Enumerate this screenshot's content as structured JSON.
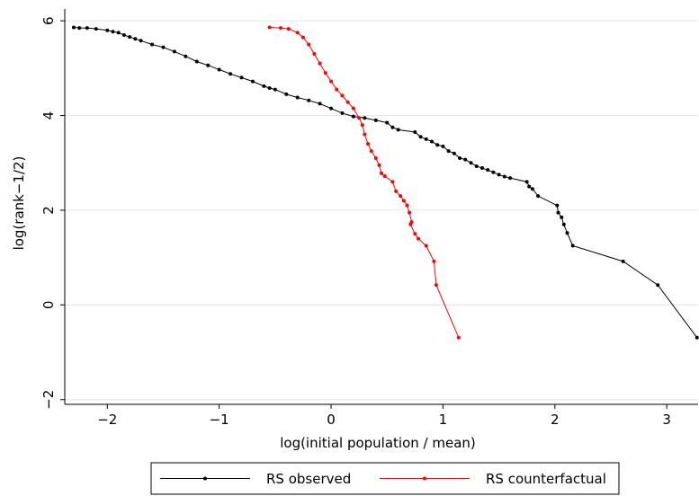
{
  "chart_data": {
    "type": "scatter",
    "title": "",
    "xlabel": "log(initial population / mean)",
    "ylabel": "log(rank−1/2)",
    "xlim": [
      -2.38,
      3.28
    ],
    "ylim": [
      -2.1,
      6.25
    ],
    "xticks": [
      -2,
      -1,
      0,
      1,
      2,
      3
    ],
    "xtick_labels": [
      "−2",
      "−1",
      "0",
      "1",
      "2",
      "3"
    ],
    "yticks": [
      -2,
      0,
      2,
      4,
      6
    ],
    "ytick_labels": [
      "−2",
      "0",
      "2",
      "4",
      "6"
    ],
    "grid": "horizontal",
    "legend_position": "bottom",
    "series": [
      {
        "name": "RS observed",
        "color": "#000000",
        "x": [
          -2.3,
          -2.25,
          -2.18,
          -2.1,
          -2.0,
          -1.95,
          -1.9,
          -1.85,
          -1.8,
          -1.75,
          -1.7,
          -1.6,
          -1.5,
          -1.4,
          -1.3,
          -1.2,
          -1.1,
          -1.0,
          -0.9,
          -0.8,
          -0.7,
          -0.6,
          -0.55,
          -0.5,
          -0.4,
          -0.3,
          -0.2,
          -0.1,
          0.0,
          0.1,
          0.2,
          0.3,
          0.4,
          0.5,
          0.55,
          0.6,
          0.75,
          0.8,
          0.85,
          0.9,
          0.95,
          1.0,
          1.05,
          1.1,
          1.15,
          1.2,
          1.25,
          1.3,
          1.35,
          1.4,
          1.45,
          1.5,
          1.55,
          1.6,
          1.75,
          1.77,
          1.8,
          1.85,
          2.02,
          2.03,
          2.06,
          2.08,
          2.11,
          2.16,
          2.61,
          2.92,
          3.27
        ],
        "y": [
          5.86,
          5.85,
          5.85,
          5.83,
          5.8,
          5.77,
          5.75,
          5.7,
          5.66,
          5.62,
          5.58,
          5.5,
          5.44,
          5.35,
          5.25,
          5.14,
          5.06,
          4.97,
          4.88,
          4.8,
          4.72,
          4.62,
          4.58,
          4.55,
          4.45,
          4.38,
          4.32,
          4.25,
          4.15,
          4.05,
          3.98,
          3.95,
          3.9,
          3.85,
          3.75,
          3.7,
          3.65,
          3.55,
          3.5,
          3.45,
          3.38,
          3.35,
          3.25,
          3.2,
          3.1,
          3.07,
          3.0,
          2.93,
          2.89,
          2.85,
          2.8,
          2.75,
          2.71,
          2.68,
          2.6,
          2.5,
          2.45,
          2.3,
          2.1,
          1.95,
          1.85,
          1.7,
          1.52,
          1.25,
          0.92,
          0.42,
          -0.69
        ]
      },
      {
        "name": "RS counterfactual",
        "color": "#ff0000",
        "x": [
          -0.55,
          -0.45,
          -0.38,
          -0.3,
          -0.25,
          -0.2,
          -0.15,
          -0.1,
          -0.05,
          0.0,
          0.05,
          0.1,
          0.15,
          0.2,
          0.25,
          0.28,
          0.3,
          0.33,
          0.36,
          0.4,
          0.43,
          0.45,
          0.48,
          0.55,
          0.58,
          0.62,
          0.65,
          0.68,
          0.7,
          0.72,
          0.71,
          0.75,
          0.78,
          0.85,
          0.92,
          0.94,
          1.14
        ],
        "y": [
          5.86,
          5.85,
          5.83,
          5.75,
          5.65,
          5.5,
          5.3,
          5.1,
          4.9,
          4.72,
          4.55,
          4.42,
          4.28,
          4.15,
          3.95,
          3.8,
          3.6,
          3.4,
          3.25,
          3.1,
          2.95,
          2.78,
          2.72,
          2.6,
          2.4,
          2.3,
          2.2,
          2.1,
          1.95,
          1.75,
          1.7,
          1.5,
          1.4,
          1.25,
          0.92,
          0.42,
          -0.69
        ]
      }
    ]
  }
}
